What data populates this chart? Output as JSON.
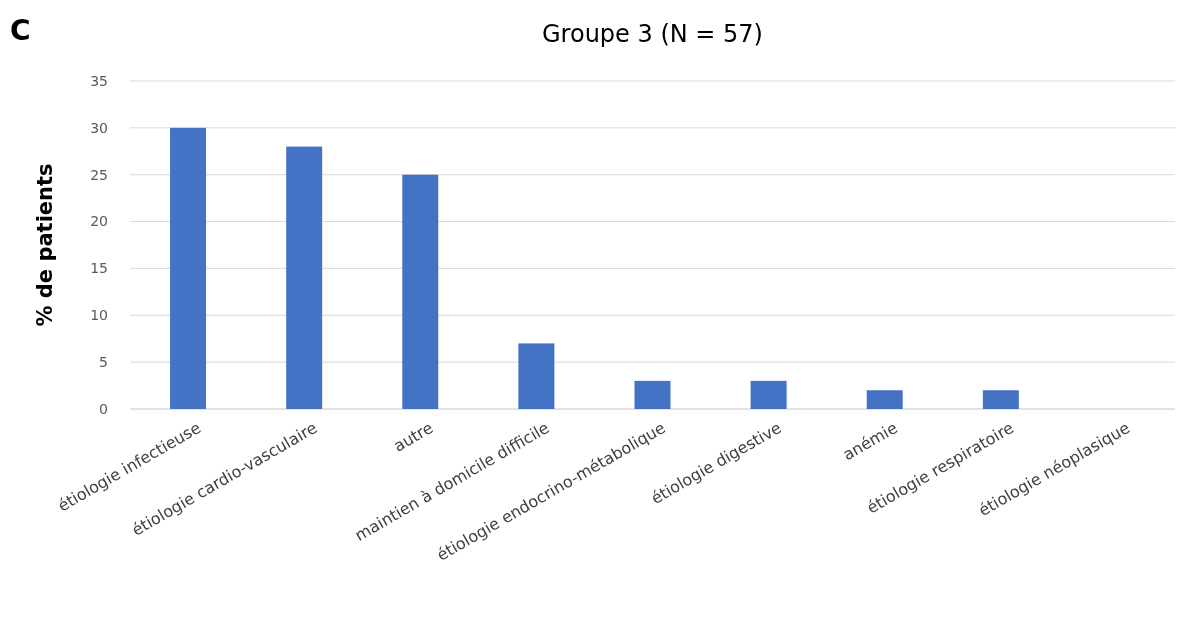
{
  "chart_data": {
    "type": "bar",
    "title": "Groupe 3 (N = 57)",
    "ylabel": "% de patients",
    "annotations": [
      "C"
    ],
    "categories": [
      "étiologie infectieuse",
      "étiologie cardio-vasculaire",
      "autre",
      "maintien à domicile difficile",
      "étiologie endocrino-métabolique",
      "étiologie digestive",
      "anémie",
      "étiologie respiratoire",
      "étiologie néoplasique"
    ],
    "values": [
      30,
      28,
      25,
      7,
      3,
      3,
      2,
      2,
      0
    ],
    "color": "#4472c4",
    "ylim": [
      0,
      35
    ],
    "yticks": [
      0,
      5,
      10,
      15,
      20,
      25,
      30,
      35
    ],
    "grid": "y"
  }
}
